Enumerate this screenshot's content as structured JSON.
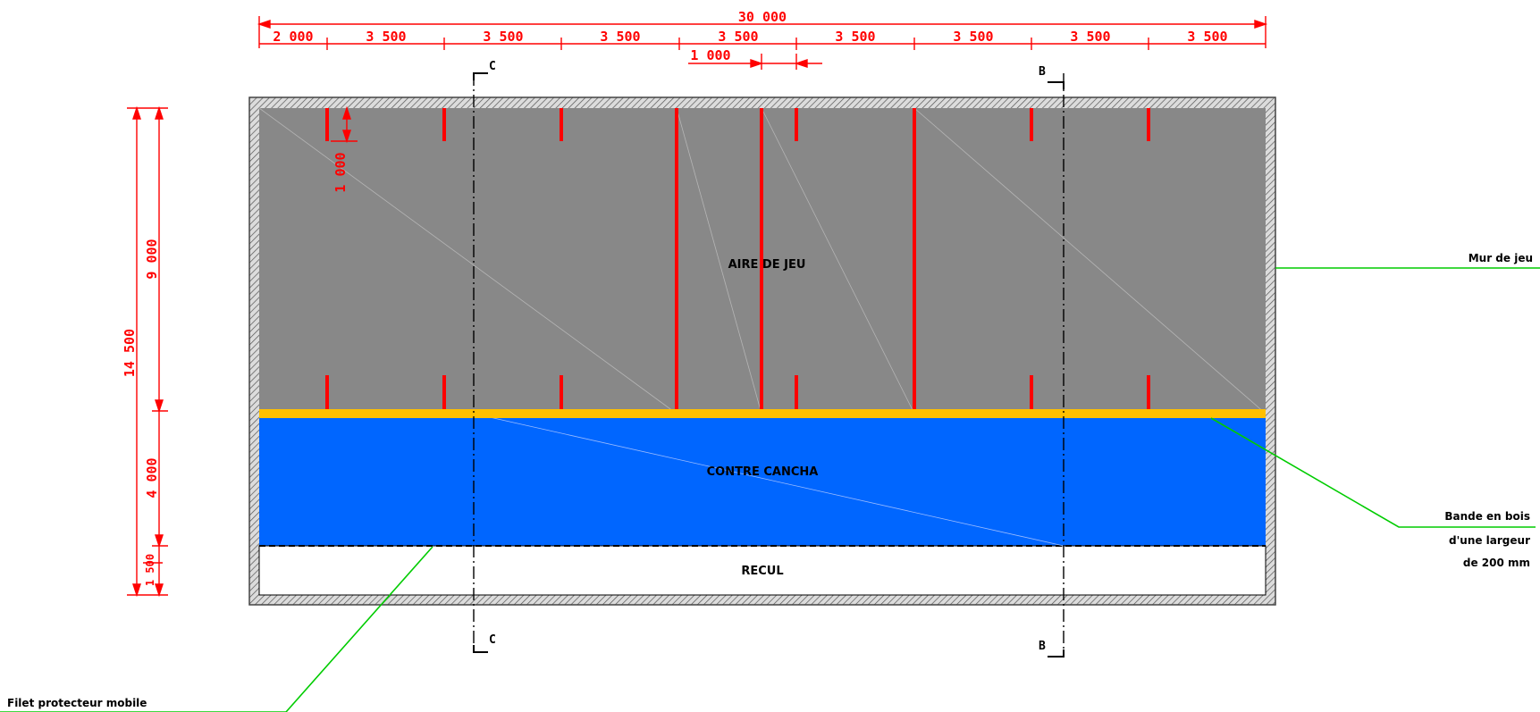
{
  "dimensions": {
    "total_width": "30 000",
    "first_segment": "2 000",
    "segments": [
      "3 500",
      "3 500",
      "3 500",
      "3 500",
      "3 500",
      "3 500",
      "3 500",
      "3 500"
    ],
    "sub_segment": "1 000",
    "marker_length": "1 000",
    "total_height": "14 500",
    "play_depth": "9 000",
    "contre_cancha_depth": "4 000",
    "recul_depth": "1 500"
  },
  "zones": {
    "play_area": "AIRE DE JEU",
    "contre_cancha": "CONTRE CANCHA",
    "recul": "RECUL"
  },
  "annotations": {
    "wall": "Mur de jeu",
    "band_line1": "Bande en bois",
    "band_line2": "d'une largeur",
    "band_line3": "de 200 mm",
    "net": "Filet protecteur mobile"
  },
  "sections": {
    "left": "C",
    "right": "B"
  },
  "colors": {
    "play_area": "#888888",
    "contre_cancha": "#0066ff",
    "band": "#ffc000",
    "dimension": "#ff0000",
    "leader": "#00cc00",
    "wall": "#aaaaaa"
  }
}
